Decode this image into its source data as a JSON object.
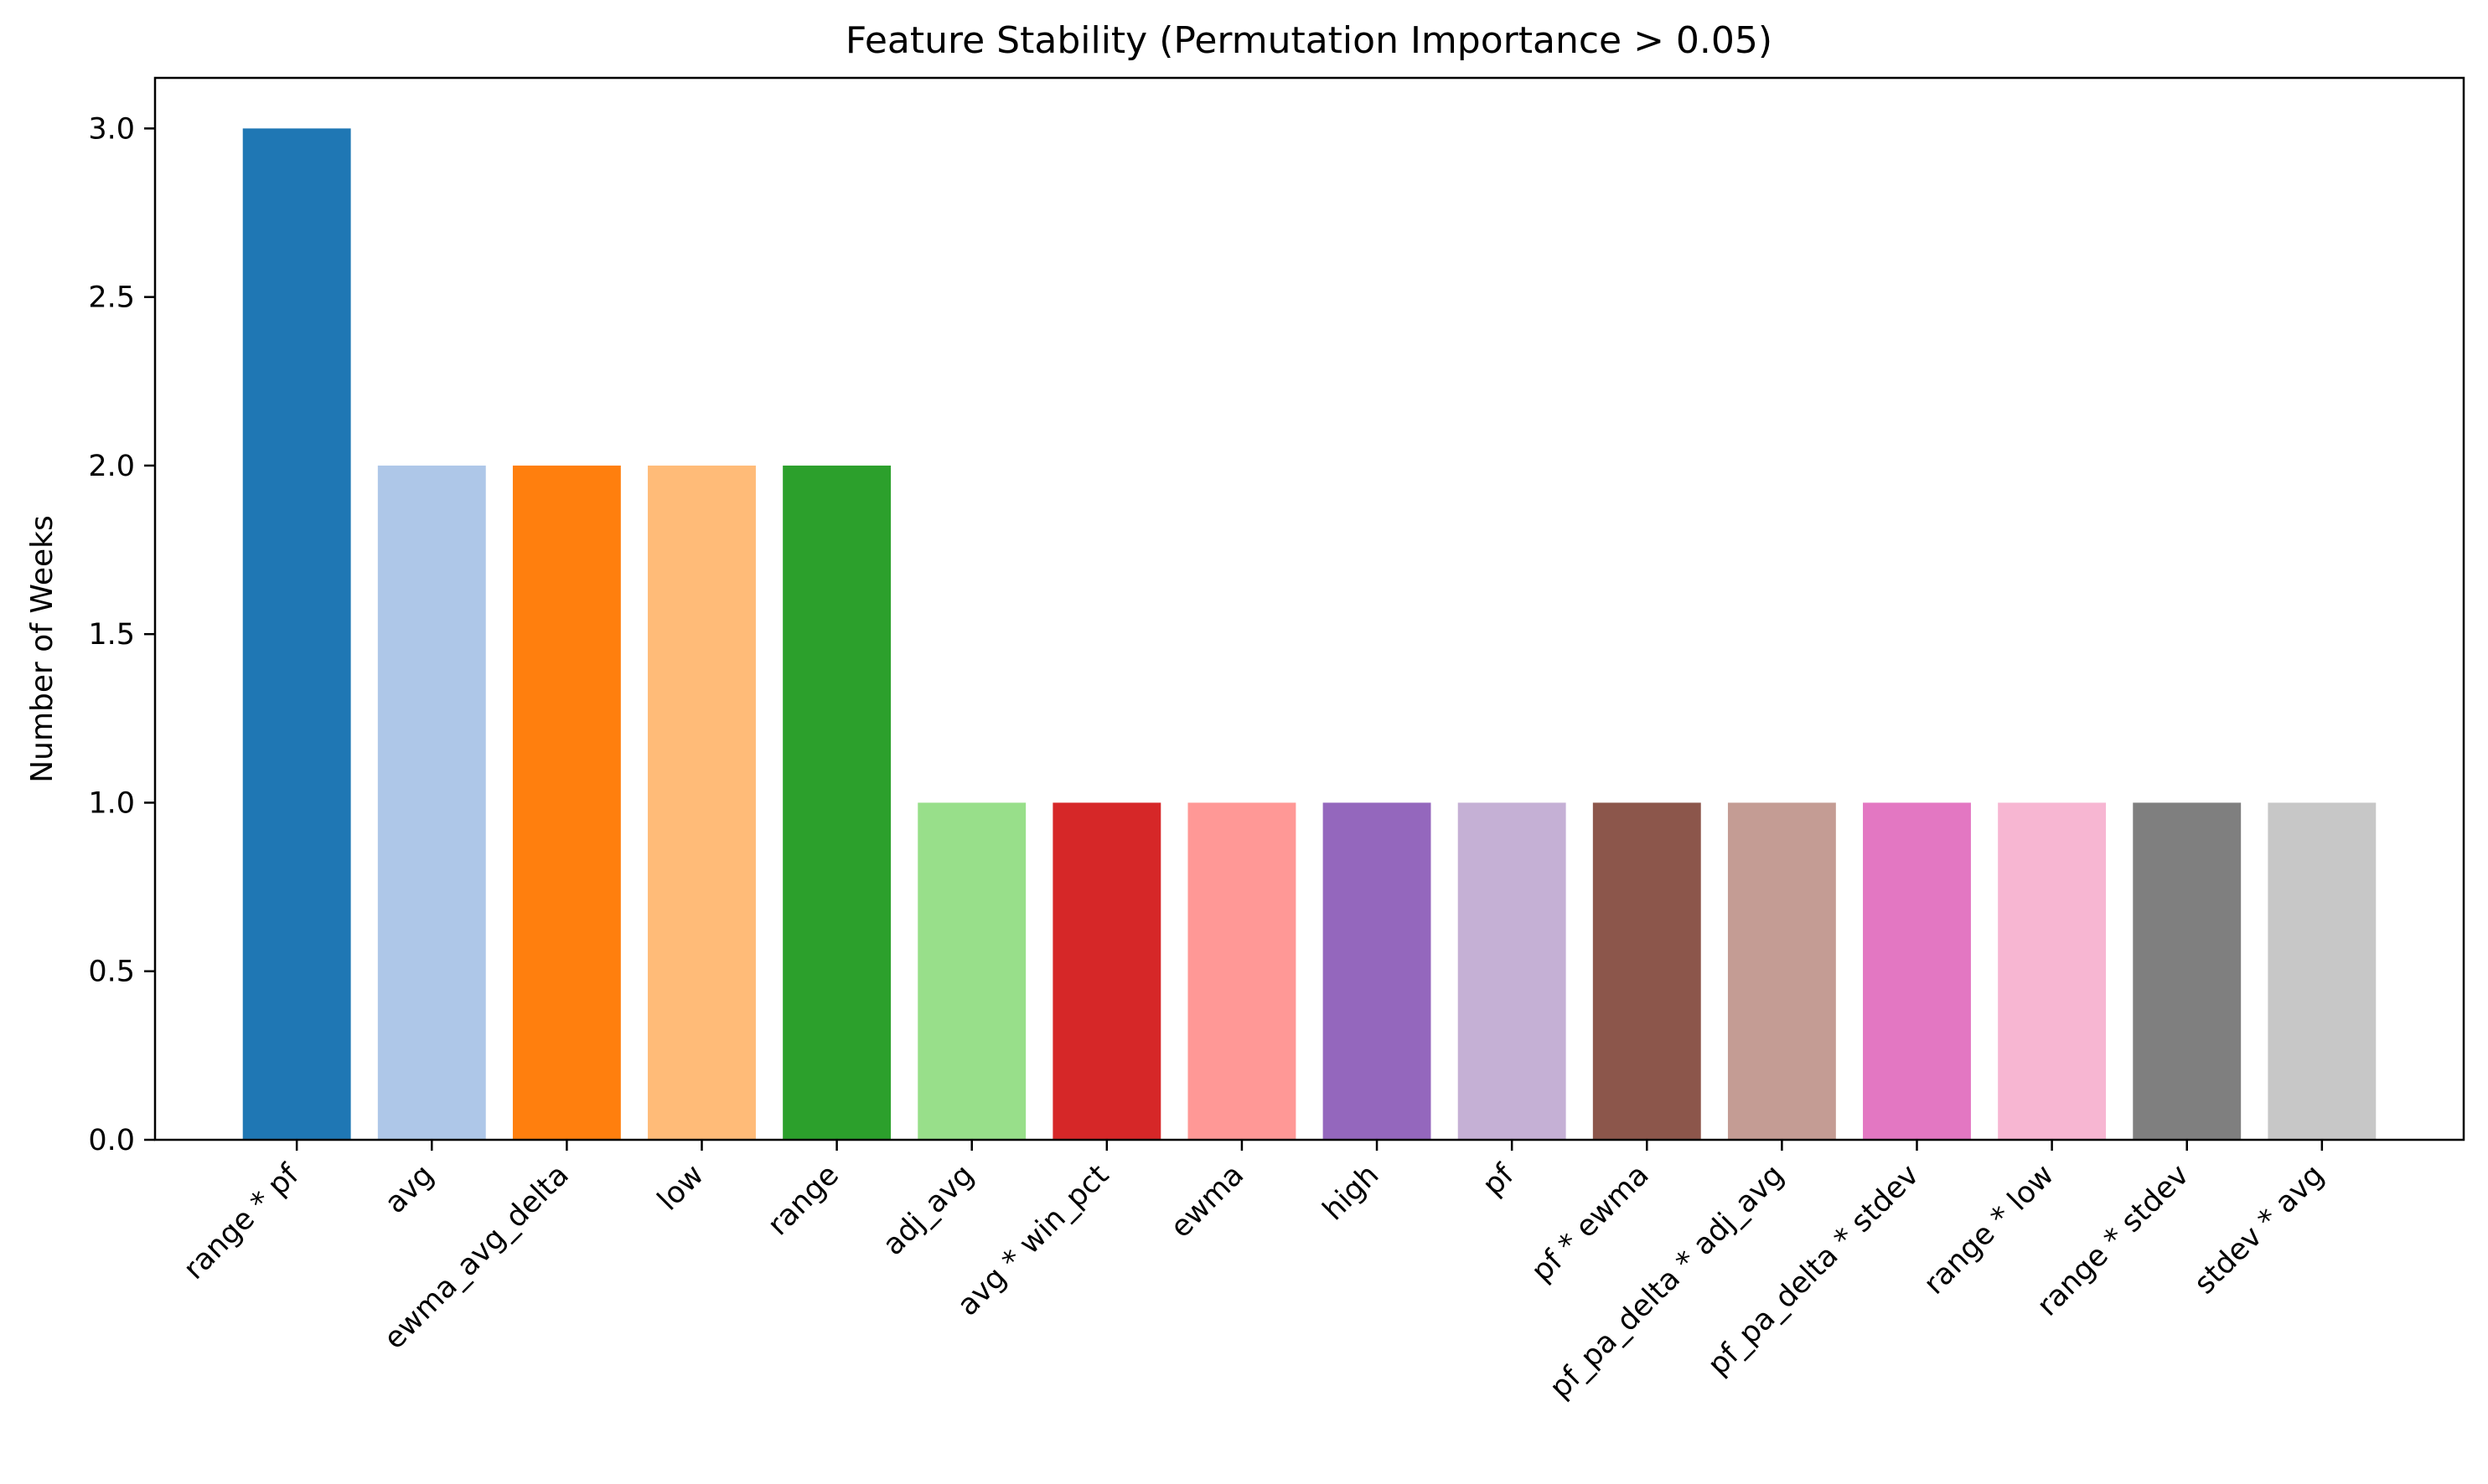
{
  "chart_data": {
    "type": "bar",
    "title": "Feature Stability (Permutation Importance > 0.05)",
    "xlabel": "",
    "ylabel": "Number of Weeks",
    "ylim": [
      0,
      3.15
    ],
    "yticks": [
      "0.0",
      "0.5",
      "1.0",
      "1.5",
      "2.0",
      "2.5",
      "3.0"
    ],
    "grid": false,
    "categories": [
      "range * pf",
      "avg",
      "ewma_avg_delta",
      "low",
      "range",
      "adj_avg",
      "avg * win_pct",
      "ewma",
      "high",
      "pf",
      "pf * ewma",
      "pf_pa_delta * adj_avg",
      "pf_pa_delta * stdev",
      "range * low",
      "range * stdev",
      "stdev * avg"
    ],
    "values": [
      3,
      2,
      2,
      2,
      2,
      1,
      1,
      1,
      1,
      1,
      1,
      1,
      1,
      1,
      1,
      1
    ],
    "colors": [
      "#1f77b4",
      "#aec7e8",
      "#ff7f0e",
      "#ffbb78",
      "#2ca02c",
      "#98df8a",
      "#d62728",
      "#ff9896",
      "#9467bd",
      "#c5b0d5",
      "#8c564b",
      "#c49c94",
      "#e377c2",
      "#f7b6d2",
      "#7f7f7f",
      "#c7c7c7"
    ]
  }
}
